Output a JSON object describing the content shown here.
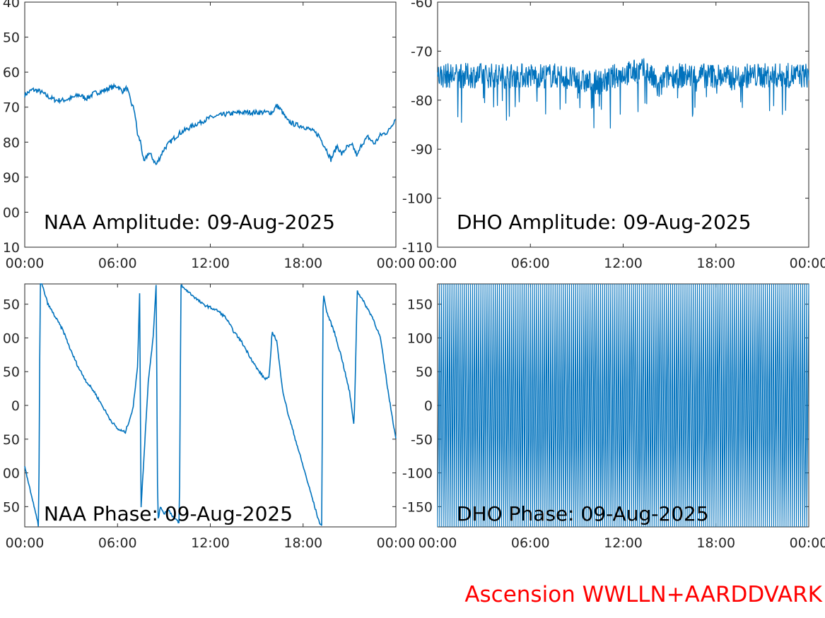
{
  "footer_label": "Ascension WWLLN+AARDDVARK",
  "line_color": "#0072bd",
  "footer_color": "#ff0000",
  "chart_data": [
    {
      "type": "line",
      "title": "NAA Amplitude: 09-Aug-2025",
      "xlabel": "",
      "ylabel": "",
      "xlim": [
        "00:00",
        "24:00"
      ],
      "xticks": [
        "00:00",
        "06:00",
        "12:00",
        "18:00",
        "00:00"
      ],
      "ylim": [
        -110,
        -40
      ],
      "yticks": [
        "40",
        "50",
        "60",
        "70",
        "80",
        "90",
        "00",
        "10"
      ],
      "series": [
        {
          "x_hours": [
            0,
            0.5,
            1,
            1.5,
            2,
            2.5,
            3,
            3.5,
            4,
            4.5,
            5,
            5.5,
            6,
            6.3,
            6.6,
            6.9,
            7.1,
            7.3,
            7.5,
            7.7,
            8,
            8.2,
            8.5,
            9,
            9.5,
            10,
            11,
            12,
            13,
            14,
            15,
            16,
            16.3,
            16.6,
            17,
            17.5,
            18,
            18.5,
            19,
            19.5,
            19.8,
            20.2,
            20.5,
            20.8,
            21.2,
            21.5,
            21.8,
            22.2,
            22.6,
            23,
            23.5,
            24
          ],
          "values": [
            -66.5,
            -65,
            -65.5,
            -67,
            -68,
            -68,
            -67.5,
            -66.5,
            -67.5,
            -66,
            -65.5,
            -64.5,
            -64,
            -65.5,
            -64.5,
            -69,
            -71,
            -78,
            -80,
            -86,
            -83,
            -84,
            -86.5,
            -82,
            -79.5,
            -77.5,
            -75,
            -73,
            -72,
            -71.5,
            -71.5,
            -71.5,
            -69.5,
            -71,
            -74,
            -75,
            -75.5,
            -76.5,
            -78,
            -82,
            -85,
            -81,
            -83.5,
            -81.5,
            -81,
            -84,
            -80.5,
            -78.5,
            -80.5,
            -78,
            -77,
            -73
          ]
        }
      ]
    },
    {
      "type": "line",
      "title": "DHO Amplitude: 09-Aug-2025",
      "xlabel": "",
      "ylabel": "",
      "xlim": [
        "00:00",
        "24:00"
      ],
      "xticks": [
        "00:00",
        "06:00",
        "12:00",
        "18:00",
        "00:00"
      ],
      "ylim": [
        -110,
        -60
      ],
      "yticks": [
        "-60",
        "-70",
        "-80",
        "-90",
        "-100",
        "-110"
      ],
      "series": [
        {
          "x_hours": [
            0,
            1,
            2,
            3,
            4,
            5,
            6,
            7,
            8,
            9,
            10,
            11,
            11.5,
            12,
            12.5,
            13,
            13.5,
            14,
            14.3,
            14.7,
            15,
            16,
            17,
            18,
            19,
            20,
            21,
            22,
            23,
            24
          ],
          "values": [
            -75,
            -75,
            -75,
            -75,
            -75,
            -75,
            -75,
            -75,
            -75,
            -76,
            -76.5,
            -76,
            -75,
            -74.5,
            -74.5,
            -74,
            -74,
            -76,
            -78,
            -75.5,
            -75,
            -75,
            -75,
            -75,
            -75.5,
            -75,
            -75,
            -75,
            -75,
            -75
          ]
        }
      ]
    },
    {
      "type": "line",
      "title": "NAA Phase: 09-Aug-2025",
      "xlabel": "",
      "ylabel": "",
      "xlim": [
        "00:00",
        "24:00"
      ],
      "xticks": [
        "00:00",
        "06:00",
        "12:00",
        "18:00",
        "00:00"
      ],
      "ylim": [
        -180,
        180
      ],
      "yticks": [
        "50",
        "00",
        "50",
        "0",
        "50",
        "00",
        "50"
      ],
      "series": [
        {
          "x_hours": [
            0,
            0.5,
            0.9,
            1.0,
            1.1,
            1.3,
            1.5,
            2,
            2.5,
            3,
            3.5,
            4,
            4.5,
            5,
            5.5,
            6,
            6.5,
            7,
            7.3,
            7.45,
            7.5,
            7.7,
            8,
            8.3,
            8.5,
            8.6,
            8.7,
            8.8,
            9,
            9.3,
            9.6,
            10,
            10.1,
            10.2,
            10.5,
            11,
            11.5,
            12,
            12.5,
            13,
            13.5,
            14,
            14.5,
            15,
            15.5,
            15.8,
            16,
            16.3,
            16.5,
            16.7,
            17,
            17.5,
            18,
            18.5,
            19,
            19.2,
            19.3,
            19.5,
            20,
            20.5,
            21,
            21.3,
            21.5,
            22,
            22.5,
            23,
            23.5,
            24
          ],
          "values": [
            -90,
            -140,
            -180,
            180,
            180,
            165,
            150,
            130,
            110,
            80,
            55,
            35,
            20,
            0,
            -20,
            -35,
            -40,
            -5,
            60,
            180,
            -160,
            -80,
            40,
            100,
            180,
            -170,
            -160,
            -150,
            -160,
            -155,
            -165,
            -175,
            180,
            175,
            170,
            160,
            150,
            145,
            140,
            130,
            110,
            95,
            75,
            55,
            40,
            40,
            110,
            95,
            55,
            20,
            -10,
            -50,
            -90,
            -130,
            -170,
            -180,
            170,
            140,
            110,
            70,
            20,
            -30,
            170,
            150,
            130,
            100,
            20,
            -50
          ]
        }
      ]
    },
    {
      "type": "line",
      "title": "DHO Phase: 09-Aug-2025",
      "xlabel": "",
      "ylabel": "",
      "xlim": [
        "00:00",
        "24:00"
      ],
      "xticks": [
        "00:00",
        "06:00",
        "12:00",
        "18:00",
        "00:00"
      ],
      "ylim": [
        -180,
        180
      ],
      "yticks": [
        "150",
        "100",
        "50",
        "0",
        "-50",
        "-100",
        "-150"
      ],
      "series": [
        {
          "description_free_note_removed": true,
          "wrap_cycles_per_hour": 7.5,
          "x_hours": [
            0,
            24
          ],
          "values": [
            -180,
            180
          ]
        }
      ]
    }
  ]
}
